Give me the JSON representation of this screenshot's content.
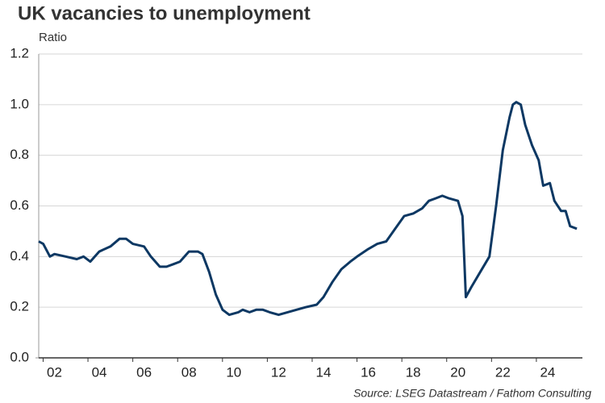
{
  "chart_data": {
    "type": "line",
    "title": "UK vacancies to unemployment",
    "subtitle": "Ratio",
    "source": "Source: LSEG Datastream / Fathom Consulting",
    "x": [
      2001.3,
      2001.5,
      2001.8,
      2002.0,
      2002.5,
      2003.0,
      2003.3,
      2003.6,
      2004.0,
      2004.5,
      2004.9,
      2005.2,
      2005.5,
      2006.0,
      2006.3,
      2006.7,
      2007.0,
      2007.3,
      2007.6,
      2008.0,
      2008.4,
      2008.6,
      2008.9,
      2009.2,
      2009.5,
      2009.8,
      2010.2,
      2010.4,
      2010.7,
      2011.0,
      2011.3,
      2011.6,
      2012.0,
      2012.4,
      2012.8,
      2013.2,
      2013.7,
      2014.0,
      2014.4,
      2014.8,
      2015.2,
      2015.5,
      2016.0,
      2016.4,
      2016.8,
      2017.2,
      2017.6,
      2018.0,
      2018.4,
      2018.7,
      2019.0,
      2019.3,
      2019.6,
      2020.0,
      2020.2,
      2020.35,
      2020.6,
      2021.0,
      2021.4,
      2021.7,
      2022.0,
      2022.3,
      2022.45,
      2022.6,
      2022.8,
      2023.0,
      2023.3,
      2023.6,
      2023.8,
      2024.1,
      2024.3,
      2024.6,
      2024.8,
      2025.0,
      2025.3
    ],
    "series": [
      {
        "color": "#0d3863",
        "values": [
          0.46,
          0.45,
          0.4,
          0.41,
          0.4,
          0.39,
          0.4,
          0.38,
          0.42,
          0.44,
          0.47,
          0.47,
          0.45,
          0.44,
          0.4,
          0.36,
          0.36,
          0.37,
          0.38,
          0.42,
          0.42,
          0.41,
          0.34,
          0.25,
          0.19,
          0.17,
          0.18,
          0.19,
          0.18,
          0.19,
          0.19,
          0.18,
          0.17,
          0.18,
          0.19,
          0.2,
          0.21,
          0.24,
          0.3,
          0.35,
          0.38,
          0.4,
          0.43,
          0.45,
          0.46,
          0.51,
          0.56,
          0.57,
          0.59,
          0.62,
          0.63,
          0.64,
          0.63,
          0.62,
          0.56,
          0.24,
          0.28,
          0.34,
          0.4,
          0.6,
          0.82,
          0.95,
          1.0,
          1.01,
          1.0,
          0.92,
          0.84,
          0.78,
          0.68,
          0.69,
          0.62,
          0.58,
          0.58,
          0.52,
          0.51
        ]
      }
    ],
    "xlim": [
      2001.3,
      2025.55
    ],
    "xticks": [
      {
        "value": 2002,
        "label": "02"
      },
      {
        "value": 2004,
        "label": "04"
      },
      {
        "value": 2006,
        "label": "06"
      },
      {
        "value": 2008,
        "label": "08"
      },
      {
        "value": 2010,
        "label": "10"
      },
      {
        "value": 2012,
        "label": "12"
      },
      {
        "value": 2014,
        "label": "14"
      },
      {
        "value": 2016,
        "label": "16"
      },
      {
        "value": 2018,
        "label": "18"
      },
      {
        "value": 2020,
        "label": "20"
      },
      {
        "value": 2022,
        "label": "22"
      },
      {
        "value": 2024,
        "label": "24"
      }
    ],
    "ylim": [
      0,
      1.2
    ],
    "yticks": [
      {
        "value": 0,
        "label": "0.0"
      },
      0.2,
      0.4,
      0.6,
      0.8,
      {
        "value": 1,
        "label": "1.0"
      },
      1.2
    ],
    "grid": true
  }
}
